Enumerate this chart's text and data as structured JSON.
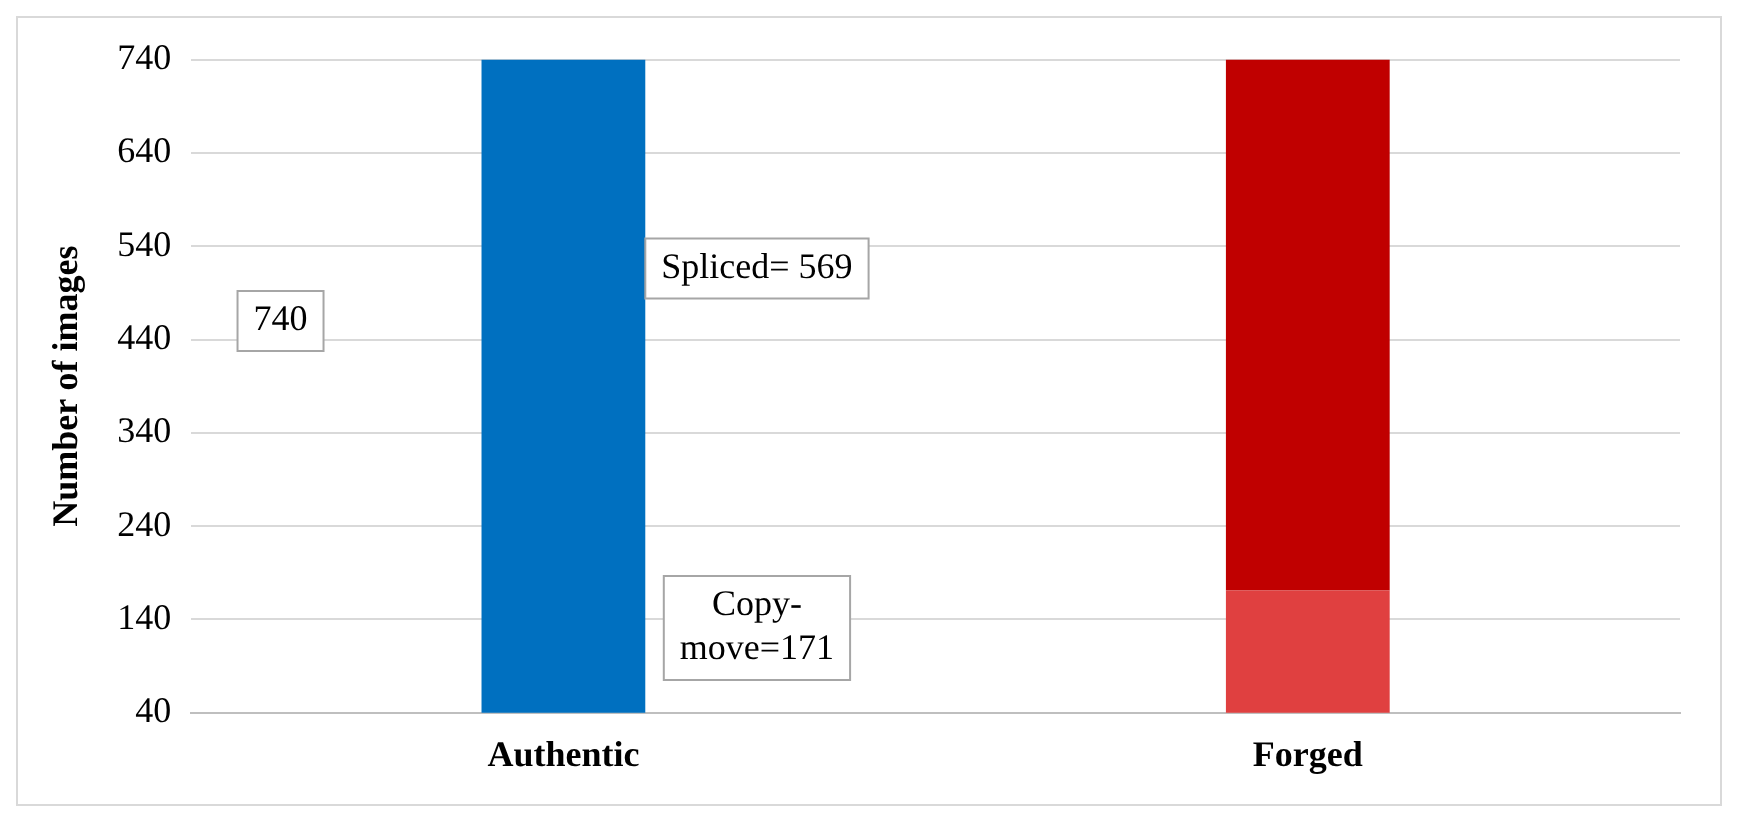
{
  "chart_data": {
    "type": "bar",
    "stacked": true,
    "ylabel": "Number of images",
    "categories": [
      "Authentic",
      "Forged"
    ],
    "series": [
      {
        "color": "#0070c0",
        "values": [
          740,
          null
        ]
      },
      {
        "color": "#e04040",
        "values": [
          null,
          171
        ]
      },
      {
        "color": "#c00000",
        "values": [
          null,
          569
        ]
      }
    ],
    "annotations": [
      "740",
      "Spliced= 569",
      "Copy-move=171"
    ],
    "ylim": [
      40,
      740
    ],
    "yticks": [
      40,
      140,
      240,
      340,
      440,
      540,
      640,
      740
    ],
    "grid": "y",
    "legend": false
  }
}
